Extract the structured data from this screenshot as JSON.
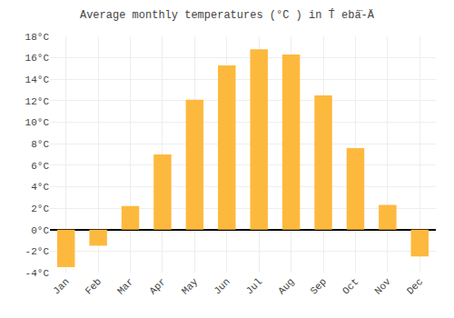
{
  "chart_data": {
    "type": "bar",
    "title": "Average monthly temperatures (°C ) in T́ ebă̈-Ä",
    "categories": [
      "Jan",
      "Feb",
      "Mar",
      "Apr",
      "May",
      "Jun",
      "Jul",
      "Aug",
      "Sep",
      "Oct",
      "Nov",
      "Dec"
    ],
    "values": [
      -3.5,
      -1.5,
      2.2,
      7.0,
      12.1,
      15.3,
      16.8,
      16.3,
      12.5,
      7.6,
      2.3,
      -2.5
    ],
    "color": "#FDB93E",
    "ylim": [
      -4,
      18
    ],
    "yticks": [
      {
        "value": -4,
        "label": "-4°C"
      },
      {
        "value": -2,
        "label": "-2°C"
      },
      {
        "value": 0,
        "label": "0°C"
      },
      {
        "value": 2,
        "label": "2°C"
      },
      {
        "value": 4,
        "label": "4°C"
      },
      {
        "value": 6,
        "label": "6°C"
      },
      {
        "value": 8,
        "label": "8°C"
      },
      {
        "value": 10,
        "label": "10°C"
      },
      {
        "value": 12,
        "label": "12°C"
      },
      {
        "value": 14,
        "label": "14°C"
      },
      {
        "value": 16,
        "label": "16°C"
      },
      {
        "value": 18,
        "label": "18°C"
      }
    ],
    "grid": true
  }
}
